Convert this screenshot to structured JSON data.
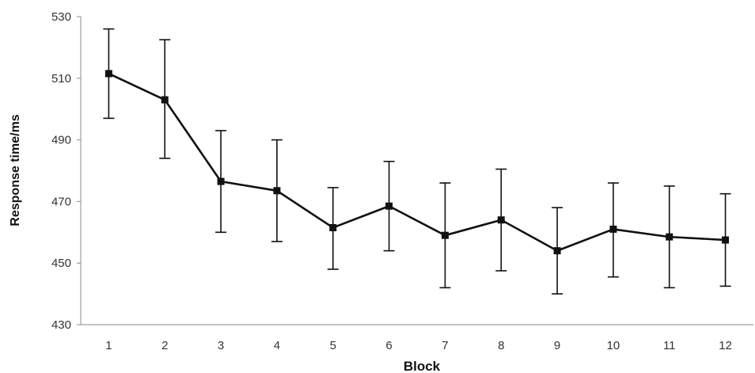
{
  "chart_data": {
    "type": "line",
    "title": "",
    "xlabel": "Block",
    "ylabel": "Response time/ms",
    "categories": [
      "1",
      "2",
      "3",
      "4",
      "5",
      "6",
      "7",
      "8",
      "9",
      "10",
      "11",
      "12"
    ],
    "series": [
      {
        "values": [
          511.5,
          503,
          476.5,
          473.5,
          461.5,
          468.5,
          459,
          464,
          454,
          461,
          458.5,
          457.5
        ],
        "error_low": [
          497,
          484,
          460,
          457,
          448,
          454,
          442,
          447.5,
          440,
          445.5,
          442,
          442.5
        ],
        "error_high": [
          526,
          522.5,
          493,
          490,
          474.5,
          483,
          476,
          480.5,
          468,
          476,
          475,
          472.5
        ],
        "color": "#111111",
        "marker": "square"
      }
    ],
    "ylim": [
      430,
      530
    ],
    "yticks": [
      "430",
      "450",
      "470",
      "490",
      "510",
      "530"
    ],
    "grid": false,
    "legend": "none"
  }
}
